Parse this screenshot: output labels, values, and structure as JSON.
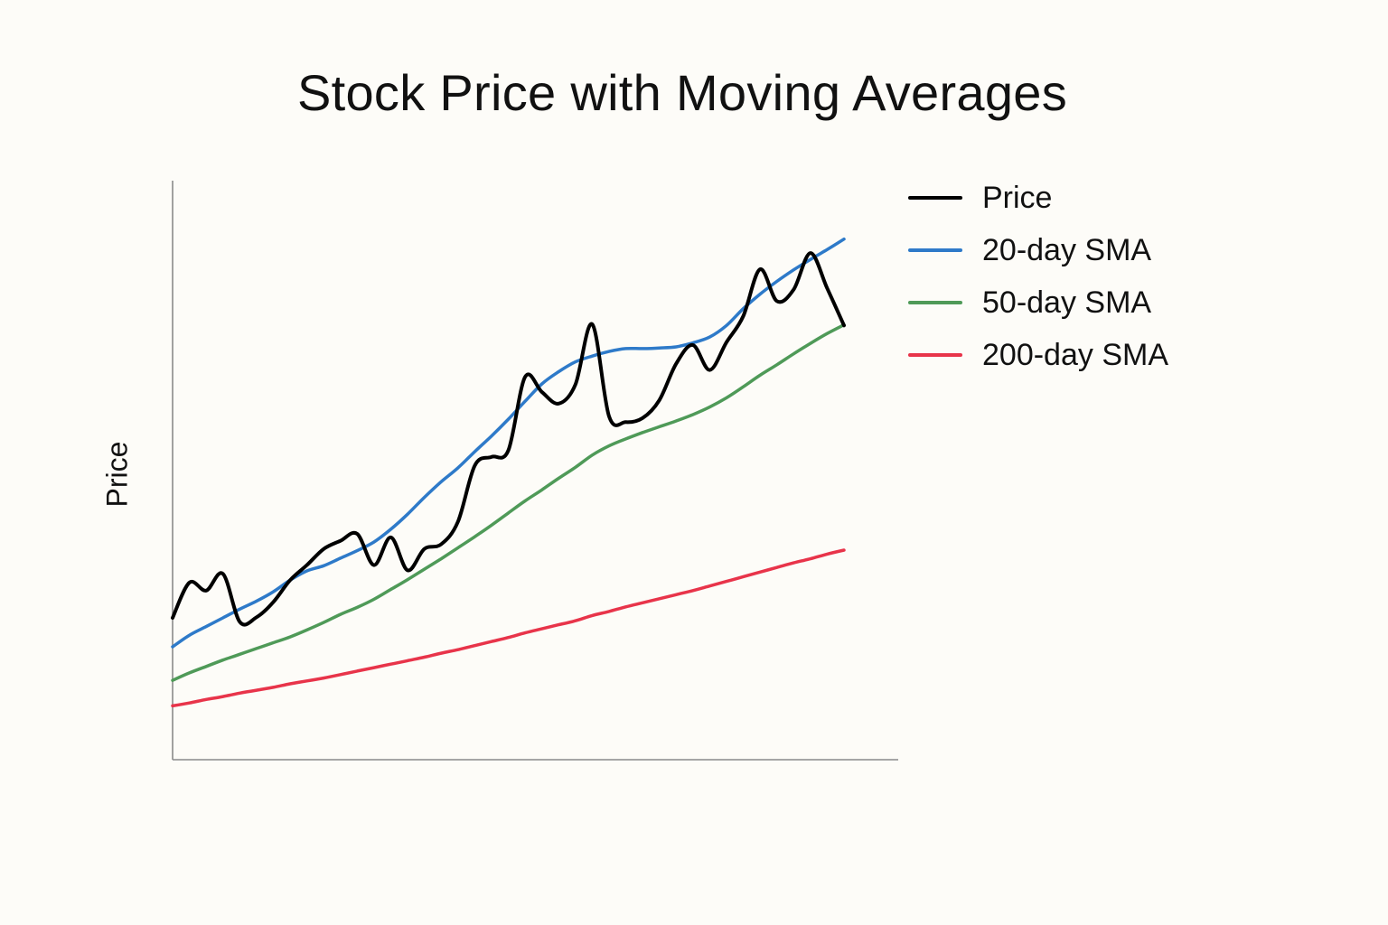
{
  "chart_data": {
    "type": "line",
    "title": "Stock Price with Moving Averages",
    "xlabel": "",
    "ylabel": "Price",
    "ylim": [
      0,
      100
    ],
    "grid": false,
    "legend_position": "top-right",
    "x_tick_labels": false,
    "y_tick_labels": false,
    "x": [
      0,
      5,
      10,
      15,
      20,
      25,
      30,
      35,
      40,
      45,
      50,
      55,
      60,
      65,
      70,
      75,
      80,
      85,
      90,
      95,
      100,
      105,
      110,
      115,
      120,
      125,
      130,
      135,
      140,
      145,
      150,
      155,
      160,
      165,
      170,
      175,
      180,
      185,
      190,
      195,
      200
    ],
    "series": [
      {
        "name": "Price",
        "color": "#000000",
        "values": [
          24.5,
          30.6,
          29.2,
          32.1,
          23.8,
          24.6,
          27.2,
          31.0,
          33.6,
          36.4,
          37.8,
          39.0,
          33.6,
          38.4,
          32.7,
          36.4,
          37.2,
          41.1,
          50.8,
          52.3,
          53.4,
          66.1,
          63.5,
          61.5,
          64.8,
          75.2,
          59.3,
          58.3,
          59.0,
          62.1,
          68.4,
          71.6,
          67.3,
          72.1,
          76.6,
          84.7,
          79.2,
          81.2,
          87.5,
          81.4,
          75.0
        ]
      },
      {
        "name": "20-day SMA",
        "color": "#2e7ac9",
        "values": [
          19.5,
          21.5,
          23.0,
          24.5,
          26.0,
          27.4,
          29.0,
          31.0,
          32.6,
          33.5,
          34.8,
          36.1,
          37.6,
          39.8,
          42.4,
          45.3,
          48.0,
          50.4,
          53.2,
          55.9,
          58.8,
          61.9,
          64.9,
          67.0,
          68.7,
          69.7,
          70.5,
          71.0,
          71.0,
          71.1,
          71.3,
          72.0,
          73.0,
          75.0,
          77.9,
          80.4,
          82.6,
          84.6,
          86.4,
          88.1,
          89.9
        ]
      },
      {
        "name": "50-day SMA",
        "color": "#4f9a58",
        "values": [
          13.7,
          15.0,
          16.1,
          17.2,
          18.2,
          19.2,
          20.2,
          21.2,
          22.4,
          23.7,
          25.1,
          26.3,
          27.7,
          29.4,
          31.1,
          32.9,
          34.7,
          36.6,
          38.5,
          40.5,
          42.6,
          44.7,
          46.6,
          48.6,
          50.5,
          52.6,
          54.2,
          55.4,
          56.5,
          57.5,
          58.5,
          59.6,
          60.9,
          62.5,
          64.4,
          66.4,
          68.2,
          70.1,
          71.9,
          73.6,
          75.1
        ]
      },
      {
        "name": "200-day SMA",
        "color": "#e8344a",
        "values": [
          9.3,
          9.8,
          10.4,
          10.9,
          11.5,
          12.0,
          12.5,
          13.1,
          13.6,
          14.1,
          14.7,
          15.3,
          15.9,
          16.5,
          17.1,
          17.7,
          18.4,
          19.0,
          19.7,
          20.4,
          21.1,
          21.9,
          22.6,
          23.3,
          24.0,
          24.9,
          25.6,
          26.4,
          27.1,
          27.8,
          28.5,
          29.2,
          30.0,
          30.8,
          31.6,
          32.4,
          33.2,
          34.0,
          34.7,
          35.5,
          36.2
        ]
      }
    ]
  }
}
